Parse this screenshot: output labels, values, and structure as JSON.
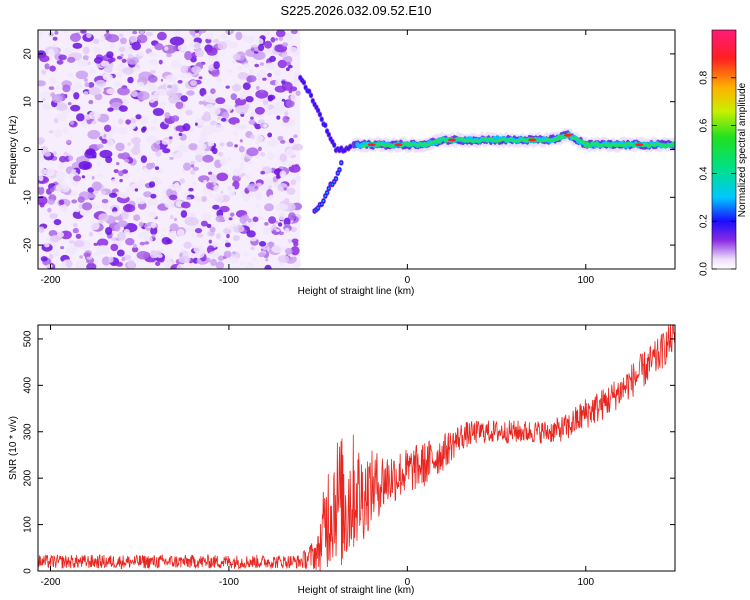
{
  "title": "S225.2026.032.09.52.E10",
  "chart_data": [
    {
      "type": "heatmap",
      "title": "S225.2026.032.09.52.E10",
      "xlabel": "Height of straight line (km)",
      "ylabel": "Frequency (Hz)",
      "xlim": [
        -207,
        150
      ],
      "ylim": [
        -25,
        25
      ],
      "xticks": [
        -200,
        -100,
        0,
        100
      ],
      "yticks": [
        -20,
        -10,
        0,
        10,
        20
      ],
      "noise_region": [
        -207,
        -60
      ],
      "signal_trace": {
        "x": [
          -60,
          -55,
          -50,
          -45,
          -40,
          -35,
          -30,
          -20,
          -10,
          0,
          10,
          20,
          40,
          60,
          80,
          90,
          95,
          100,
          110,
          130,
          150
        ],
        "freq_hz": [
          15,
          12,
          8,
          4,
          0,
          0,
          1,
          1,
          1,
          1,
          1,
          2,
          2,
          2,
          2,
          3,
          2,
          1,
          1,
          1,
          1
        ],
        "branch_down": {
          "x": [
            -52,
            -50,
            -47,
            -44,
            -40,
            -37
          ],
          "freq_hz": [
            -13,
            -12,
            -11,
            -8,
            -6,
            -3
          ]
        }
      },
      "colorbar": {
        "label": "Normalized spectral amplitude",
        "range": [
          0,
          1
        ],
        "ticks": [
          "0.0",
          "0.2",
          "0.4",
          "0.6",
          "0.8"
        ]
      }
    },
    {
      "type": "line",
      "xlabel": "Height of straight line (km)",
      "ylabel": "SNR (10 * v/v)",
      "xlim": [
        -207,
        150
      ],
      "ylim": [
        0,
        530
      ],
      "xticks": [
        -200,
        -100,
        0,
        100
      ],
      "yticks": [
        0,
        100,
        200,
        300,
        400,
        500
      ],
      "series": [
        {
          "name": "SNR",
          "color": "#e8251f",
          "x": [
            -207,
            -180,
            -150,
            -120,
            -100,
            -80,
            -60,
            -50,
            -45,
            -40,
            -35,
            -30,
            -25,
            -20,
            -10,
            0,
            10,
            20,
            30,
            40,
            60,
            80,
            90,
            100,
            110,
            120,
            130,
            140,
            150
          ],
          "y": [
            20,
            20,
            20,
            20,
            20,
            20,
            20,
            40,
            120,
            160,
            140,
            170,
            160,
            180,
            200,
            215,
            230,
            255,
            290,
            300,
            300,
            300,
            310,
            340,
            360,
            390,
            425,
            460,
            510
          ],
          "noise_amplitude": [
            15,
            15,
            15,
            15,
            15,
            15,
            15,
            40,
            120,
            140,
            150,
            130,
            100,
            80,
            60,
            50,
            50,
            40,
            30,
            25,
            25,
            25,
            30,
            35,
            35,
            35,
            40,
            40,
            40
          ]
        }
      ]
    }
  ]
}
